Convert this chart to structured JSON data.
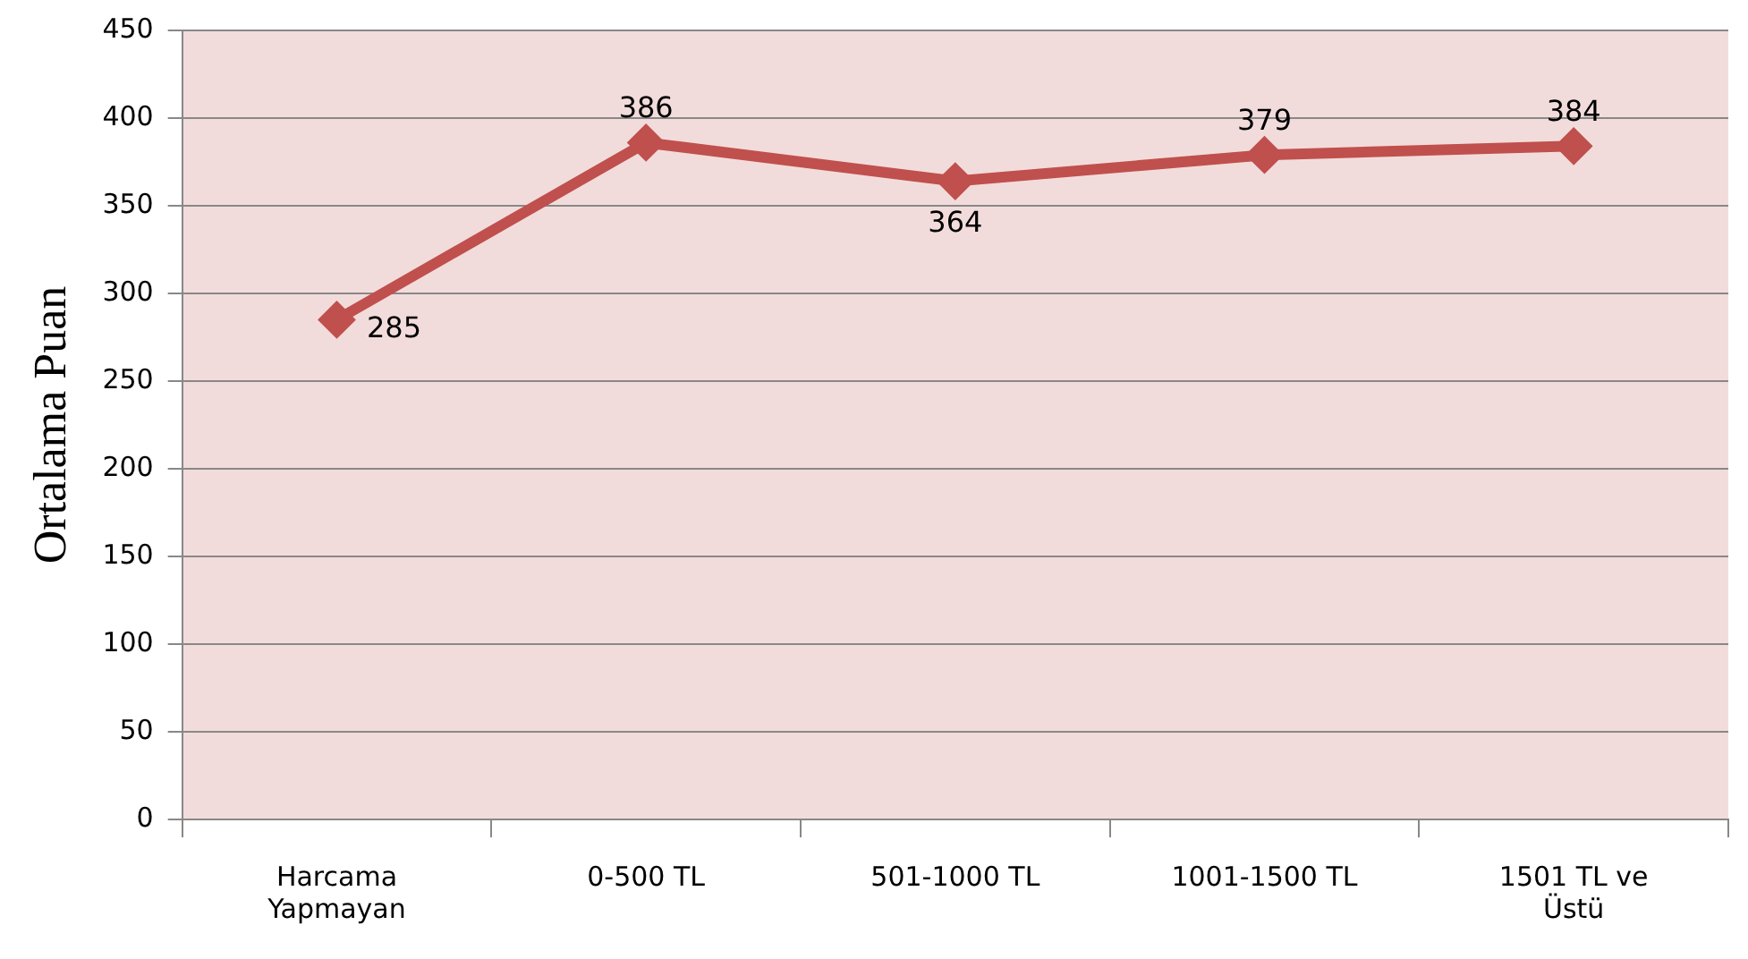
{
  "chart_data": {
    "type": "line",
    "ylabel": "Ortalama Puan",
    "categories": [
      "Harcama Yapmayan",
      "0-500 TL",
      "501-1000 TL",
      "1001-1500 TL",
      "1501 TL ve Üstü"
    ],
    "series": [
      {
        "color": "#c0504d",
        "values": [
          285,
          386,
          364,
          379,
          384
        ]
      }
    ],
    "ylim": [
      0,
      450
    ],
    "yticks": [
      0,
      50,
      100,
      150,
      200,
      250,
      300,
      350,
      400,
      450
    ],
    "grid": "y",
    "legend": false,
    "marker": "diamond",
    "line_style": "solid",
    "data_labels": true
  }
}
